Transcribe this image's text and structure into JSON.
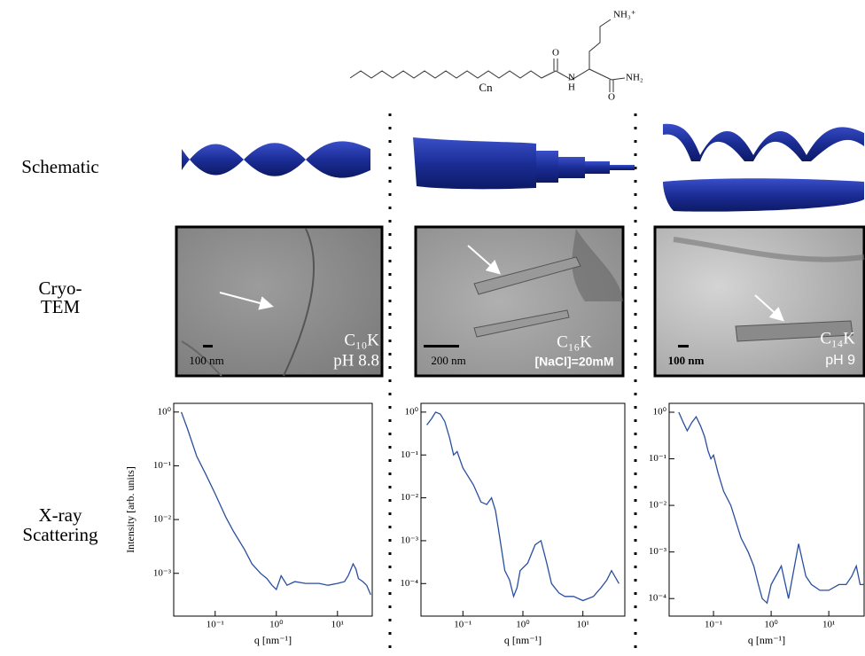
{
  "row_labels": {
    "schematic": "Schematic",
    "cryo_tem": [
      "Cryo-",
      "TEM"
    ],
    "xray": [
      "X-ray",
      "Scattering"
    ]
  },
  "molecule": {
    "chain_label": "Cn",
    "amine": "NH₃⁺",
    "amide": "NH₂",
    "carbonyl_o1": "O",
    "carbonyl_o2": "O",
    "n": "N",
    "h": "H"
  },
  "tem_panels": [
    {
      "scale": "100 nm",
      "sample": "C₁₀K",
      "condition": "pH 8.8"
    },
    {
      "scale": "200 nm",
      "sample": "C₁₆K",
      "condition": "[NaCl]=20mM"
    },
    {
      "scale": "100 nm",
      "sample": "C₁₄K",
      "condition": "pH 9"
    }
  ],
  "chart_data": [
    {
      "type": "line",
      "x_label": "q [nm⁻¹]",
      "y_label": "Intensity [arb. units]",
      "log_x": true,
      "log_y": true,
      "xlim": [
        0.021,
        37
      ],
      "ylim": [
        0.00016,
        1.45
      ],
      "xticks": [
        {
          "value": 0.1,
          "label": "10⁻¹"
        },
        {
          "value": 1,
          "label": "10⁰"
        },
        {
          "value": 10,
          "label": "10¹"
        }
      ],
      "yticks": [
        {
          "value": 1,
          "label": "10⁰"
        },
        {
          "value": 0.1,
          "label": "10⁻¹"
        },
        {
          "value": 0.01,
          "label": "10⁻²"
        },
        {
          "value": 0.001,
          "label": "10⁻³"
        }
      ],
      "x": [
        0.028,
        0.035,
        0.05,
        0.07,
        0.1,
        0.15,
        0.2,
        0.3,
        0.4,
        0.55,
        0.7,
        0.85,
        1,
        1.2,
        1.5,
        2,
        3,
        5,
        7,
        10,
        13,
        15,
        18,
        20,
        22,
        26,
        30,
        35
      ],
      "series": [
        {
          "color": "#2a4ea0",
          "values": [
            1.0,
            0.5,
            0.15,
            0.07,
            0.03,
            0.011,
            0.006,
            0.0028,
            0.0015,
            0.001,
            0.0008,
            0.0006,
            0.0005,
            0.0009,
            0.0006,
            0.0007,
            0.00065,
            0.00065,
            0.0006,
            0.00065,
            0.0007,
            0.0009,
            0.0015,
            0.0012,
            0.0008,
            0.0007,
            0.0006,
            0.0004
          ]
        }
      ]
    },
    {
      "type": "line",
      "x_label": "q [nm⁻¹]",
      "log_x": true,
      "log_y": true,
      "xlim": [
        0.02,
        50
      ],
      "ylim": [
        1.74e-05,
        1.6
      ],
      "xticks": [
        {
          "value": 0.1,
          "label": "10⁻¹"
        },
        {
          "value": 1,
          "label": "10⁰"
        },
        {
          "value": 10,
          "label": "10¹"
        }
      ],
      "yticks": [
        {
          "value": 1,
          "label": "10⁰"
        },
        {
          "value": 0.1,
          "label": "10⁻¹"
        },
        {
          "value": 0.01,
          "label": "10⁻²"
        },
        {
          "value": 0.001,
          "label": "10⁻³"
        },
        {
          "value": 0.0001,
          "label": "10⁻⁴"
        }
      ],
      "x": [
        0.025,
        0.03,
        0.035,
        0.042,
        0.05,
        0.06,
        0.07,
        0.08,
        0.1,
        0.15,
        0.2,
        0.25,
        0.3,
        0.35,
        0.4,
        0.5,
        0.6,
        0.7,
        0.8,
        0.9,
        1.2,
        1.6,
        2,
        2.5,
        3,
        4,
        5,
        7,
        10,
        15,
        20,
        25,
        30,
        40
      ],
      "series": [
        {
          "color": "#2a4ea0",
          "values": [
            0.5,
            0.7,
            1.0,
            0.9,
            0.6,
            0.25,
            0.1,
            0.12,
            0.05,
            0.02,
            0.008,
            0.007,
            0.01,
            0.005,
            0.0015,
            0.0002,
            0.00012,
            5e-05,
            8e-05,
            0.0002,
            0.0003,
            0.0008,
            0.001,
            0.0003,
            0.0001,
            6e-05,
            5e-05,
            5e-05,
            4e-05,
            5e-05,
            8e-05,
            0.00012,
            0.0002,
            0.0001
          ]
        }
      ]
    },
    {
      "type": "line",
      "x_label": "q [nm⁻¹]",
      "log_x": true,
      "log_y": true,
      "xlim": [
        0.017,
        41
      ],
      "ylim": [
        4.2e-05,
        1.55
      ],
      "xticks": [
        {
          "value": 0.1,
          "label": "10⁻¹"
        },
        {
          "value": 1,
          "label": "10⁰"
        },
        {
          "value": 10,
          "label": "10¹"
        }
      ],
      "yticks": [
        {
          "value": 1,
          "label": "10⁰"
        },
        {
          "value": 0.1,
          "label": "10⁻¹"
        },
        {
          "value": 0.01,
          "label": "10⁻²"
        },
        {
          "value": 0.001,
          "label": "10⁻³"
        },
        {
          "value": 0.0001,
          "label": "10⁻⁴"
        }
      ],
      "x": [
        0.025,
        0.03,
        0.035,
        0.042,
        0.05,
        0.06,
        0.07,
        0.08,
        0.09,
        0.1,
        0.12,
        0.15,
        0.2,
        0.3,
        0.4,
        0.5,
        0.6,
        0.7,
        0.85,
        1,
        1.5,
        2,
        3,
        4,
        5,
        7,
        10,
        15,
        20,
        25,
        30,
        35,
        40
      ],
      "series": [
        {
          "color": "#2a4ea0",
          "values": [
            1.0,
            0.6,
            0.4,
            0.6,
            0.8,
            0.5,
            0.3,
            0.15,
            0.1,
            0.12,
            0.05,
            0.02,
            0.01,
            0.002,
            0.001,
            0.0005,
            0.0002,
            0.0001,
            8e-05,
            0.0002,
            0.0005,
            0.0001,
            0.0015,
            0.0003,
            0.0002,
            0.00015,
            0.00015,
            0.0002,
            0.0002,
            0.0003,
            0.0005,
            0.0002,
            0.0002
          ]
        }
      ]
    }
  ]
}
